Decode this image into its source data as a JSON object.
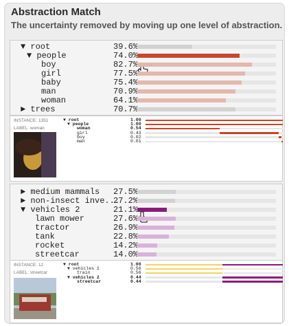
{
  "header": {
    "title": "Abstraction Match",
    "subtitle": "The uncertainty removed by moving up one level of abstraction."
  },
  "panels": [
    {
      "tree": {
        "xlim": [
          0,
          100
        ],
        "rows": [
          {
            "label": "▼ root",
            "depth": 0,
            "value": 39.6,
            "value_label": "39.6%",
            "color": "#d2d2d2"
          },
          {
            "label": "▼ people",
            "depth": 1,
            "value": 74.0,
            "value_label": "74.0%",
            "color": "#c9452b"
          },
          {
            "label": "boy",
            "depth": 2,
            "value": 82.7,
            "value_label": "82.7%",
            "color": "#e3b8ae"
          },
          {
            "label": "girl",
            "depth": 2,
            "value": 77.5,
            "value_label": "77.5%",
            "color": "#e3b8ae"
          },
          {
            "label": "baby",
            "depth": 2,
            "value": 75.4,
            "value_label": "75.4%",
            "color": "#e3b8ae"
          },
          {
            "label": "man",
            "depth": 2,
            "value": 70.9,
            "value_label": "70.9%",
            "color": "#e3b8ae"
          },
          {
            "label": "woman",
            "depth": 2,
            "value": 64.1,
            "value_label": "64.1%",
            "color": "#e3b8ae"
          },
          {
            "label": "► trees",
            "depth": 0,
            "value": 70.7,
            "value_label": "70.7%",
            "color": "#d2d2d2"
          }
        ]
      },
      "instance": {
        "id_label": "INSTANCE: 1351",
        "class_label": "LABEL: woman",
        "xlim": [
          0,
          1
        ],
        "rows": [
          {
            "label": "▼ root",
            "depth": 0,
            "value": 1.0,
            "value_label": "1.00",
            "highlighted": true,
            "color": "#cc4422"
          },
          {
            "label": "▼ people",
            "depth": 1,
            "value": 1.0,
            "value_label": "1.00",
            "highlighted": true,
            "color": "#cc4422"
          },
          {
            "label": "woman",
            "depth": 2,
            "value": 0.54,
            "value_label": "0.54",
            "highlighted": true,
            "color": "#cc4422"
          },
          {
            "label": "girl",
            "depth": 2,
            "value": 0.43,
            "value_label": "0.43",
            "highlighted": false,
            "color": "#cc4422"
          },
          {
            "label": "boy",
            "depth": 2,
            "value": 0.02,
            "value_label": "0.02",
            "highlighted": false,
            "color": "#cc4422"
          },
          {
            "label": "man",
            "depth": 2,
            "value": 0.01,
            "value_label": "0.01",
            "highlighted": false,
            "color": "#cc4422"
          }
        ]
      }
    },
    {
      "tree": {
        "xlim": [
          0,
          100
        ],
        "rows": [
          {
            "label": "► medium mammals",
            "depth": 1,
            "value": 27.5,
            "value_label": "27.5%",
            "color": "#d2d2d2"
          },
          {
            "label": "► non-insect inve...",
            "depth": 1,
            "value": 27.2,
            "value_label": "27.2%",
            "color": "#d2d2d2"
          },
          {
            "label": "▼ vehicles 2",
            "depth": 1,
            "value": 21.1,
            "value_label": "21.1%",
            "color": "#8b1a7d"
          },
          {
            "label": "lawn mower",
            "depth": 2,
            "value": 27.6,
            "value_label": "27.6%",
            "color": "#d8b2d9"
          },
          {
            "label": "tractor",
            "depth": 2,
            "value": 26.9,
            "value_label": "26.9%",
            "color": "#d8b2d9"
          },
          {
            "label": "tank",
            "depth": 2,
            "value": 22.8,
            "value_label": "22.8%",
            "color": "#d8b2d9"
          },
          {
            "label": "rocket",
            "depth": 2,
            "value": 14.2,
            "value_label": "14.2%",
            "color": "#d8b2d9"
          },
          {
            "label": "streetcar",
            "depth": 2,
            "value": 14.0,
            "value_label": "14.0%",
            "color": "#d8b2d9"
          }
        ]
      },
      "instance": {
        "id_label": "INSTANCE: 12",
        "class_label": "LABEL: streetcar",
        "xlim": [
          0,
          1
        ],
        "rows": [
          {
            "label": "▼ root",
            "depth": 0,
            "value": 1.0,
            "value_label": "1.00",
            "highlighted": true,
            "color": "#8b1a7d"
          },
          {
            "label": "▼ vehicles 1",
            "depth": 1,
            "value": 0.56,
            "value_label": "0.56",
            "highlighted": false,
            "color": "#f2d365"
          },
          {
            "label": "train",
            "depth": 2,
            "value": 0.56,
            "value_label": "0.56",
            "highlighted": false,
            "color": "#f2d365"
          },
          {
            "label": "▼ vehicles 2",
            "depth": 1,
            "value": 0.44,
            "value_label": "0.44",
            "highlighted": true,
            "color": "#8b1a7d"
          },
          {
            "label": "streetcar",
            "depth": 2,
            "value": 0.44,
            "value_label": "0.44",
            "highlighted": true,
            "color": "#8b1a7d"
          }
        ]
      }
    }
  ]
}
